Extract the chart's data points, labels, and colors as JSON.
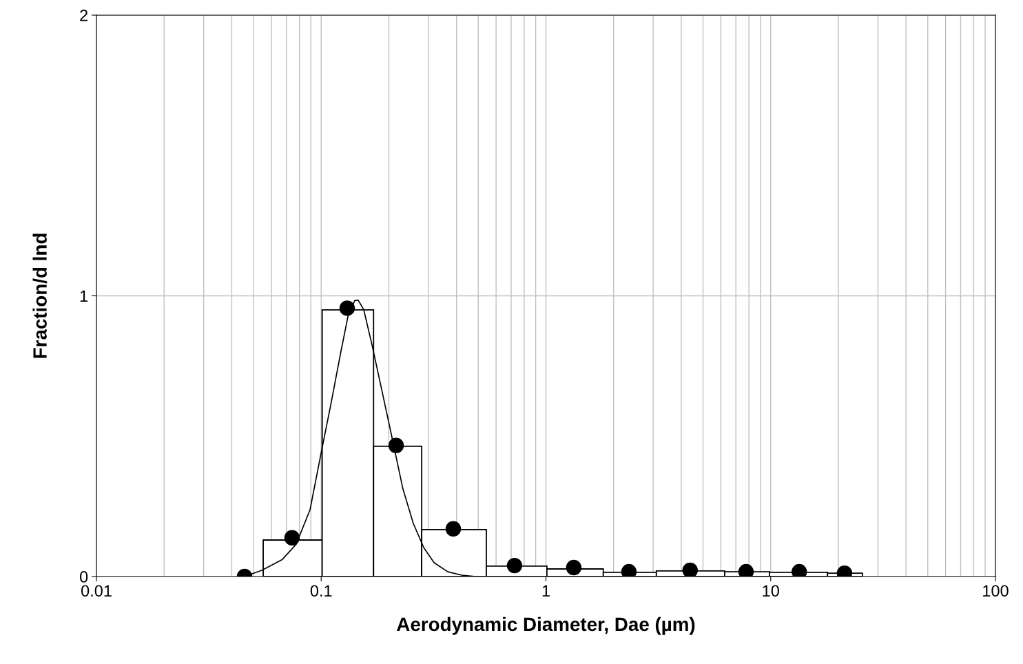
{
  "chart_data": {
    "type": "histogram",
    "xlabel": "Aerodynamic Diameter, Dae (µm)",
    "ylabel": "Fraction/d lnd",
    "log": "x",
    "xlim": [
      0.01,
      100
    ],
    "xticks": [
      0.01,
      0.1,
      1,
      10,
      100
    ],
    "ylim": [
      0,
      2
    ],
    "yticks": [
      0,
      1,
      2
    ],
    "grid": true,
    "series": [
      {
        "color": "#ffffff",
        "bins": [
          0.0552,
          0.101,
          0.171,
          0.28,
          0.543,
          1.01,
          1.8,
          3.1,
          6.24,
          9.88,
          17.9,
          25.6
        ],
        "values": [
          0.13,
          0.95,
          0.464,
          0.167,
          0.037,
          0.027,
          0.015,
          0.02,
          0.017,
          0.015,
          0.012
        ]
      },
      {
        "type": "line",
        "color": "#000000",
        "x": [
          0.0456,
          0.0544,
          0.0672,
          0.0774,
          0.0892,
          0.101,
          0.11,
          0.1225,
          0.1315,
          0.141,
          0.146,
          0.1546,
          0.168,
          0.187,
          0.208,
          0.231,
          0.257,
          0.286,
          0.318,
          0.366,
          0.422,
          0.485
        ],
        "values": [
          0,
          0.022,
          0.061,
          0.115,
          0.238,
          0.459,
          0.607,
          0.803,
          0.926,
          0.983,
          0.985,
          0.951,
          0.828,
          0.656,
          0.484,
          0.312,
          0.189,
          0.103,
          0.049,
          0.017,
          0.005,
          0
        ]
      },
      {
        "type": "scatter",
        "color": "#000000",
        "marker": "circle",
        "x": [
          0.0456,
          0.0742,
          0.1305,
          0.2155,
          0.387,
          0.725,
          1.33,
          2.34,
          4.38,
          7.77,
          13.4,
          21.3
        ],
        "values": [
          0,
          0.138,
          0.956,
          0.467,
          0.17,
          0.039,
          0.032,
          0.017,
          0.022,
          0.017,
          0.017,
          0.012
        ]
      }
    ]
  }
}
